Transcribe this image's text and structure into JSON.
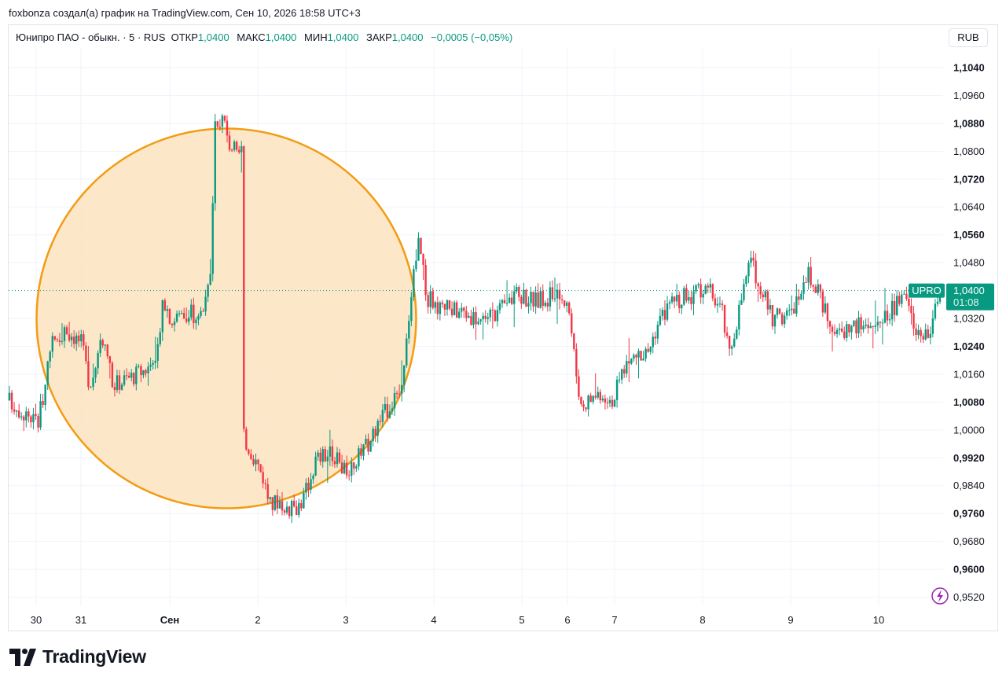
{
  "header": {
    "text": "foxbonza создал(а) график на TradingView.com, Сен 10, 2026 18:58 UTC+3"
  },
  "legend": {
    "symbol": "Юнипро ПАО - обыкн. · 5 · RUS",
    "open_label": "ОТКР",
    "open_value": "1,0400",
    "high_label": "МАКС",
    "high_value": "1,0400",
    "low_label": "МИН",
    "low_value": "1,0400",
    "close_label": "ЗАКР",
    "close_value": "1,0400",
    "change": "−0,0005 (−0,05%)"
  },
  "currency": "RUB",
  "brand": {
    "name": "TradingView"
  },
  "colors": {
    "up": "#089981",
    "down": "#f23645",
    "circle_stroke": "#f39c12",
    "circle_fill": "#fde4c3",
    "grid": "#f0f3fa"
  },
  "icons": {
    "lightning": "lightning-icon",
    "logo": "tradingview-logo-icon"
  },
  "chart_data": {
    "type": "candlestick",
    "y_ticks": [
      "1,1040",
      "1,0960",
      "1,0880",
      "1,0800",
      "1,0720",
      "1,0640",
      "1,0560",
      "1,0480",
      "1,0320",
      "1,0240",
      "1,0160",
      "1,0080",
      "1,0000",
      "0,9920",
      "0,9840",
      "0,9760",
      "0,9680",
      "0,9600",
      "0,9520"
    ],
    "y_ticks_bold": [
      "1,1040",
      "1,0880",
      "1,0720",
      "1,0560",
      "1,0240",
      "1,0080",
      "0,9920",
      "0,9760",
      "0,9600"
    ],
    "x_labels": [
      "30",
      "31",
      "Сен",
      "2",
      "3",
      "4",
      "5",
      "6",
      "7",
      "8",
      "9",
      "10"
    ],
    "x_labels_bold": [
      "Сен"
    ],
    "ylim": [
      0.95,
      1.108
    ],
    "current_price": {
      "symbol": "UPRO",
      "value": "1,0400",
      "countdown": "01:08",
      "price": 1.04
    },
    "annotation": {
      "type": "circle",
      "center_price": 1.032,
      "radius_price": 0.0545
    },
    "path": [
      [
        0,
        1.0085
      ],
      [
        1.5,
        1.005
      ],
      [
        3,
        1.0025
      ],
      [
        4.6,
        1.026
      ],
      [
        6,
        1.029
      ],
      [
        7.5,
        1.025
      ],
      [
        8.6,
        1.01
      ],
      [
        9.5,
        1.027
      ],
      [
        10.8,
        1.013
      ],
      [
        12.5,
        1.015
      ],
      [
        14.5,
        1.018
      ],
      [
        15.4,
        1.023
      ],
      [
        16,
        1.038
      ],
      [
        17,
        1.031
      ],
      [
        18,
        1.034
      ],
      [
        19.5,
        1.033
      ],
      [
        20.4,
        1.035
      ],
      [
        21,
        1.044
      ],
      [
        21.4,
        1.086
      ],
      [
        22.2,
        1.088
      ],
      [
        23,
        1.082
      ],
      [
        24,
        1.078
      ],
      [
        24.2,
        1.08
      ],
      [
        24.4,
        0.998
      ],
      [
        25.2,
        0.994
      ],
      [
        26.4,
        0.987
      ],
      [
        27.2,
        0.978
      ],
      [
        28,
        0.98
      ],
      [
        29.5,
        0.977
      ],
      [
        30.6,
        0.98
      ],
      [
        32,
        0.992
      ],
      [
        33.5,
        0.993
      ],
      [
        35,
        0.988
      ],
      [
        37,
        0.994
      ],
      [
        38.5,
        1.002
      ],
      [
        39.8,
        1.008
      ],
      [
        40.6,
        1.008
      ],
      [
        41.1,
        1.016
      ],
      [
        42,
        1.044
      ],
      [
        42.7,
        1.054
      ],
      [
        43.5,
        1.038
      ],
      [
        45,
        1.035
      ],
      [
        47,
        1.034
      ],
      [
        49,
        1.032
      ],
      [
        51,
        1.034
      ],
      [
        53,
        1.039
      ],
      [
        55,
        1.037
      ],
      [
        57,
        1.039
      ],
      [
        58.2,
        1.038
      ],
      [
        59,
        1.018
      ],
      [
        59.6,
        1.007
      ],
      [
        61.5,
        1.011
      ],
      [
        63,
        1.009
      ],
      [
        64,
        1.018
      ],
      [
        65,
        1.021
      ],
      [
        66.5,
        1.022
      ],
      [
        67.5,
        1.03
      ],
      [
        69,
        1.037
      ],
      [
        71.5,
        1.039
      ],
      [
        73,
        1.04
      ],
      [
        74.3,
        1.034
      ],
      [
        75,
        1.021
      ],
      [
        76.4,
        1.039
      ],
      [
        77.2,
        1.048
      ],
      [
        78.2,
        1.042
      ],
      [
        79.5,
        1.032
      ],
      [
        81.4,
        1.033
      ],
      [
        82.3,
        1.039
      ],
      [
        83.1,
        1.045
      ],
      [
        84.3,
        1.039
      ],
      [
        85.3,
        1.032
      ],
      [
        86.5,
        1.027
      ],
      [
        87.4,
        1.03
      ],
      [
        89,
        1.03
      ],
      [
        90.9,
        1.031
      ],
      [
        92.1,
        1.035
      ],
      [
        93.4,
        1.038
      ],
      [
        94.4,
        1.03
      ],
      [
        95.7,
        1.026
      ],
      [
        96.4,
        1.034
      ],
      [
        97,
        1.039
      ]
    ]
  }
}
